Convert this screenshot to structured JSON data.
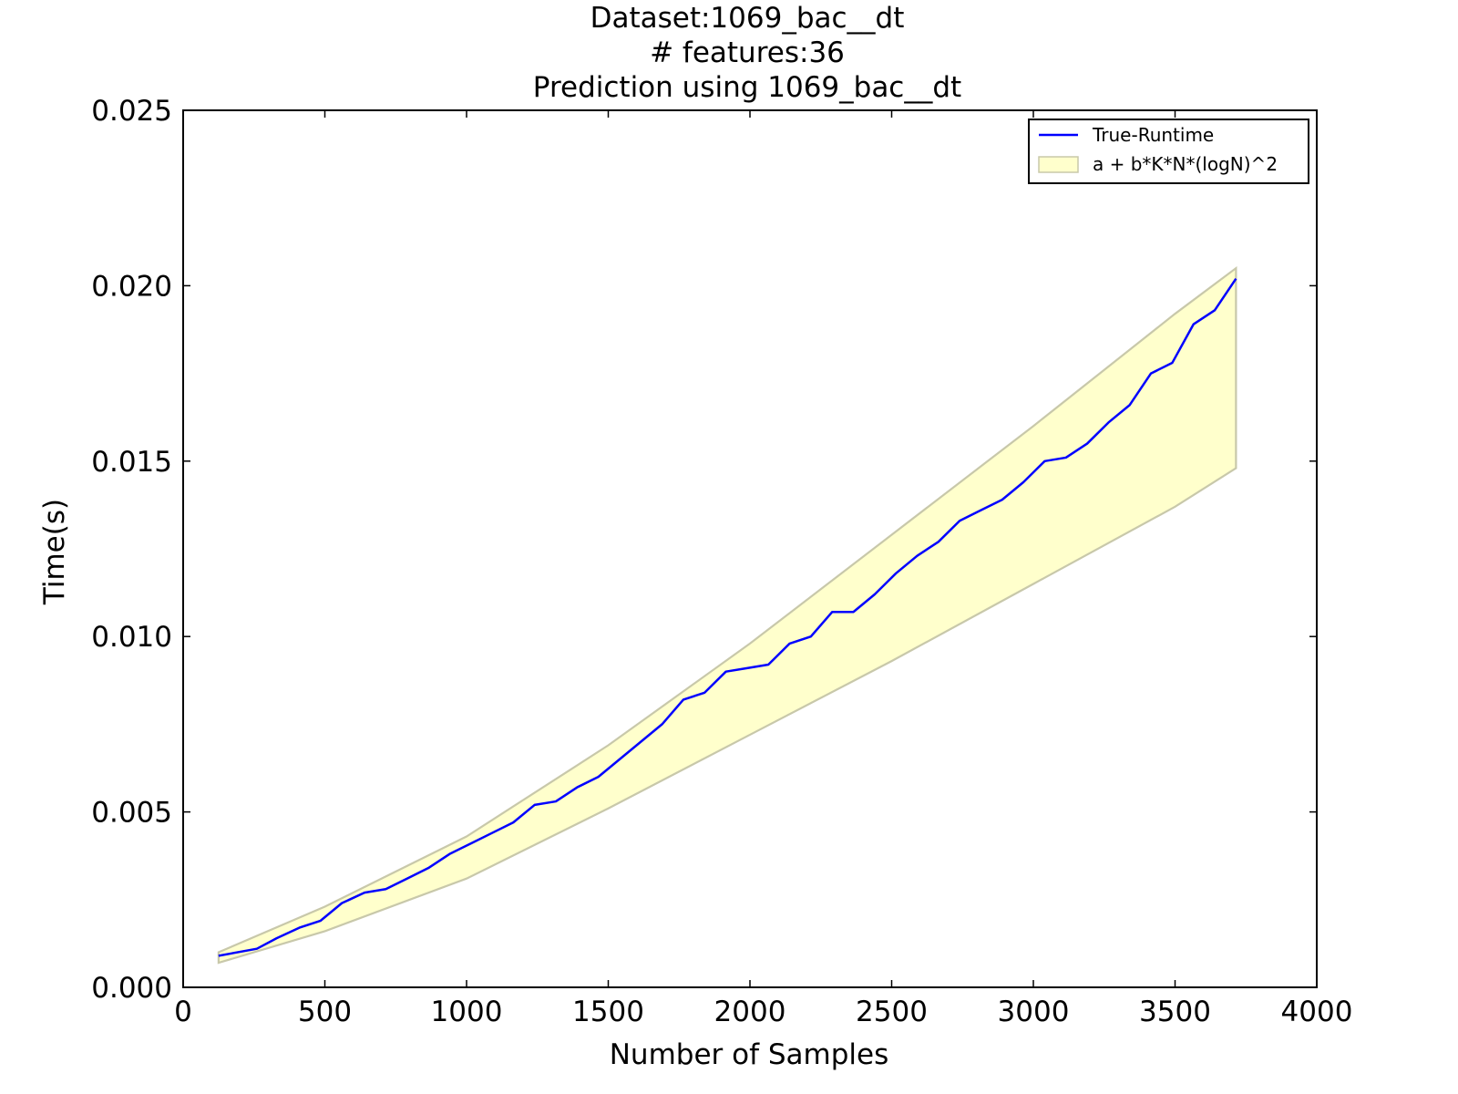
{
  "chart_data": {
    "type": "line",
    "title_lines": [
      "Dataset:1069_bac__dt",
      "# features:36",
      "Prediction using 1069_bac__dt"
    ],
    "xlabel": "Number of Samples",
    "ylabel": "Time(s)",
    "xlim": [
      0,
      4000
    ],
    "ylim": [
      0,
      0.025
    ],
    "x_ticks": [
      0,
      500,
      1000,
      1500,
      2000,
      2500,
      3000,
      3500,
      4000
    ],
    "x_tick_labels": [
      "0",
      "500",
      "1000",
      "1500",
      "2000",
      "2500",
      "3000",
      "3500",
      "4000"
    ],
    "y_ticks": [
      0,
      0.005,
      0.01,
      0.015,
      0.02,
      0.025
    ],
    "y_tick_labels": [
      "0.000",
      "0.005",
      "0.010",
      "0.015",
      "0.020",
      "0.025"
    ],
    "grid": false,
    "legend_position": "top-right",
    "series": [
      {
        "name": "True-Runtime",
        "kind": "line",
        "color": "#0000ff",
        "x": [
          125,
          260,
          330,
          410,
          485,
          560,
          640,
          715,
          790,
          865,
          940,
          1015,
          1090,
          1165,
          1240,
          1315,
          1390,
          1465,
          1540,
          1615,
          1690,
          1765,
          1840,
          1915,
          1990,
          2065,
          2140,
          2215,
          2290,
          2365,
          2440,
          2515,
          2590,
          2665,
          2740,
          2815,
          2890,
          2965,
          3040,
          3115,
          3190,
          3265,
          3340,
          3415,
          3490,
          3565,
          3640,
          3715
        ],
        "y": [
          0.0009,
          0.0011,
          0.0014,
          0.0017,
          0.0019,
          0.0024,
          0.0027,
          0.0028,
          0.0031,
          0.0034,
          0.0038,
          0.0041,
          0.0044,
          0.0047,
          0.0052,
          0.0053,
          0.0057,
          0.006,
          0.0065,
          0.007,
          0.0075,
          0.0082,
          0.0084,
          0.009,
          0.0091,
          0.0092,
          0.0098,
          0.01,
          0.0107,
          0.0107,
          0.0112,
          0.0118,
          0.0123,
          0.0127,
          0.0133,
          0.0136,
          0.0139,
          0.0144,
          0.015,
          0.0151,
          0.0155,
          0.0161,
          0.0166,
          0.0175,
          0.0178,
          0.0189,
          0.0193,
          0.0202
        ]
      },
      {
        "name": "a + b*K*N*(logN)^2",
        "kind": "band",
        "color": "#ffffcc",
        "edge_color": "#c8c8aa",
        "x": [
          125,
          500,
          1000,
          1500,
          2000,
          2500,
          3000,
          3500,
          3715
        ],
        "upper": [
          0.001,
          0.0023,
          0.0043,
          0.0069,
          0.0098,
          0.0129,
          0.016,
          0.0192,
          0.0205
        ],
        "lower": [
          0.0007,
          0.0016,
          0.0031,
          0.0051,
          0.0072,
          0.0093,
          0.0115,
          0.0137,
          0.0148
        ]
      }
    ]
  }
}
